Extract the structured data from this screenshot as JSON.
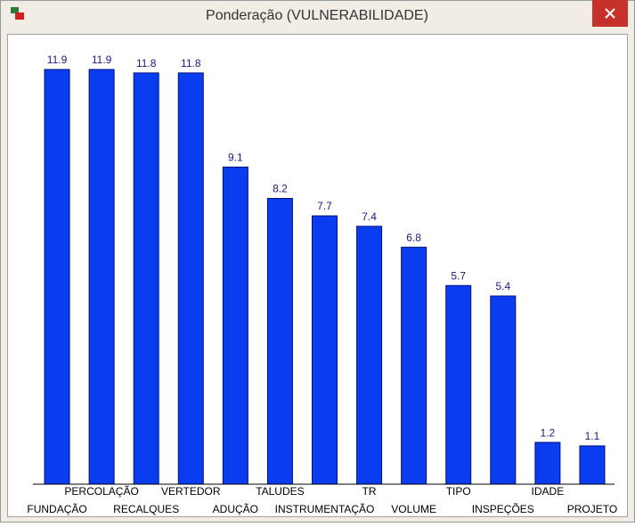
{
  "chart_data": {
    "type": "bar",
    "title": "Ponderação (VULNERABILIDADE)",
    "categories": [
      "FUNDAÇÃO",
      "PERCOLAÇÃO",
      "RECALQUES",
      "VERTEDOR",
      "ADUÇÃO",
      "TALUDES",
      "INSTRUMENTAÇÃO",
      "TR",
      "VOLUME",
      "TIPO",
      "INSPEÇÕES",
      "IDADE",
      "PROJETO"
    ],
    "values": [
      11.9,
      11.9,
      11.8,
      11.8,
      9.1,
      8.2,
      7.7,
      7.4,
      6.8,
      5.7,
      5.4,
      1.2,
      1.1
    ],
    "color": "#0a3cf0",
    "ylim": [
      0,
      12
    ]
  }
}
